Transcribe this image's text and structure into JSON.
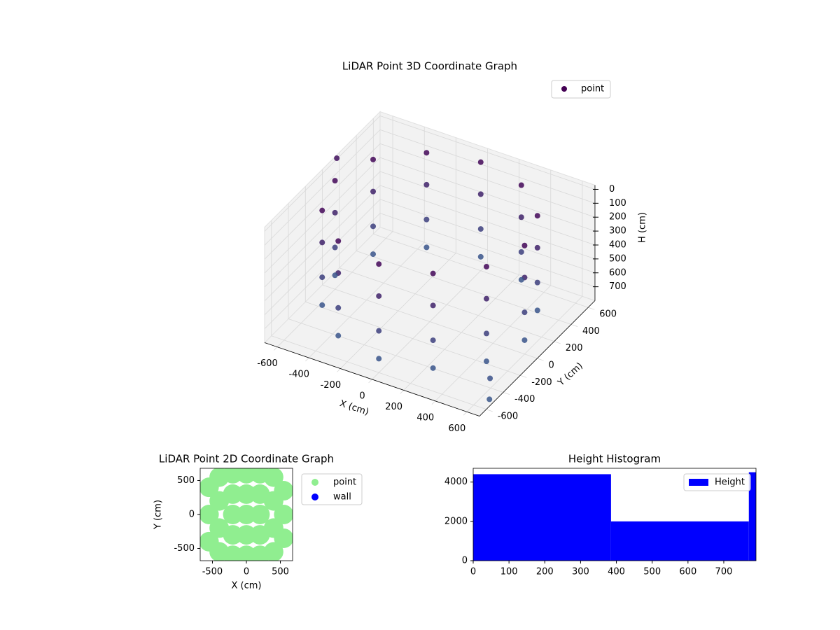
{
  "chart_data": [
    {
      "type": "scatter3d",
      "title": "LiDAR Point 3D Coordinate Graph",
      "x_label": "X (cm)",
      "y_label": "Y (cm)",
      "z_label": "H (cm)",
      "xlim": [
        -680,
        680
      ],
      "ylim": [
        -680,
        680
      ],
      "zlim": [
        -30,
        800
      ],
      "z_inverted": true,
      "xticks": [
        -600,
        -400,
        -200,
        0,
        200,
        400,
        600
      ],
      "yticks": [
        -600,
        -400,
        -200,
        0,
        200,
        400,
        600
      ],
      "zticks": [
        0,
        100,
        200,
        300,
        400,
        500,
        600,
        700
      ],
      "colormap": "viridis",
      "legend": "upper right",
      "grid": true,
      "series": [
        {
          "name": "point",
          "x": [
            600,
            520,
            300,
            0,
            -300,
            -520,
            -600,
            -520,
            -300,
            0,
            300,
            520,
            600,
            520,
            300,
            0,
            -300,
            -520,
            -600,
            -520,
            -300,
            0,
            300,
            520,
            600,
            520,
            300,
            0,
            -300,
            -520,
            -600,
            -520,
            -300,
            0,
            300,
            520,
            600,
            520,
            300,
            0,
            -300,
            -520,
            -600,
            -520,
            -300,
            0,
            300,
            520,
            650,
            700,
            -750
          ],
          "y": [
            0,
            300,
            520,
            600,
            520,
            300,
            0,
            -300,
            -520,
            -600,
            -520,
            -300,
            0,
            300,
            520,
            600,
            520,
            300,
            0,
            -300,
            -520,
            -600,
            -520,
            -300,
            0,
            300,
            520,
            600,
            520,
            300,
            0,
            -300,
            -520,
            -600,
            -520,
            -300,
            0,
            300,
            520,
            600,
            520,
            300,
            0,
            -300,
            -520,
            -600,
            -520,
            -300,
            -500,
            -600,
            300
          ],
          "z": [
            20,
            20,
            20,
            20,
            20,
            20,
            20,
            20,
            20,
            20,
            20,
            20,
            250,
            250,
            250,
            250,
            250,
            250,
            250,
            250,
            250,
            250,
            250,
            250,
            500,
            500,
            500,
            500,
            500,
            500,
            500,
            500,
            500,
            500,
            500,
            500,
            700,
            700,
            700,
            700,
            700,
            700,
            700,
            700,
            700,
            700,
            700,
            700,
            650,
            720,
            100
          ]
        }
      ]
    },
    {
      "type": "scatter",
      "title": "LiDAR Point 2D Coordinate Graph",
      "x_label": "X (cm)",
      "y_label": "Y (cm)",
      "xlim": [
        -680,
        680
      ],
      "ylim": [
        -680,
        680
      ],
      "xticks": [
        -500,
        0,
        500
      ],
      "yticks": [
        -500,
        0,
        500
      ],
      "legend": "outside right",
      "series": [
        {
          "name": "point",
          "color": "#90ee90",
          "x": [
            -550,
            -550,
            -550,
            -400,
            -400,
            -400,
            -400,
            -200,
            -200,
            -200,
            -200,
            -200,
            0,
            0,
            0,
            0,
            0,
            200,
            200,
            200,
            200,
            200,
            400,
            400,
            400,
            400,
            550,
            550,
            550
          ],
          "y": [
            -400,
            0,
            400,
            -550,
            -200,
            200,
            550,
            -600,
            -300,
            0,
            300,
            600,
            -600,
            -300,
            0,
            300,
            600,
            -600,
            -300,
            0,
            300,
            600,
            -550,
            -200,
            200,
            550,
            -350,
            0,
            350
          ]
        },
        {
          "name": "wall",
          "color": "#0000ff",
          "x": [],
          "y": []
        }
      ]
    },
    {
      "type": "histogram",
      "title": "Height Histogram",
      "name": "Height",
      "color": "#0000ff",
      "bins": [
        0,
        385,
        770,
        790
      ],
      "values": [
        4400,
        2000,
        4500
      ],
      "xlim": [
        0,
        790
      ],
      "ylim": [
        0,
        4700
      ],
      "xticks": [
        0,
        100,
        200,
        300,
        400,
        500,
        600,
        700
      ],
      "yticks": [
        0,
        2000,
        4000
      ],
      "legend": "upper right"
    }
  ]
}
